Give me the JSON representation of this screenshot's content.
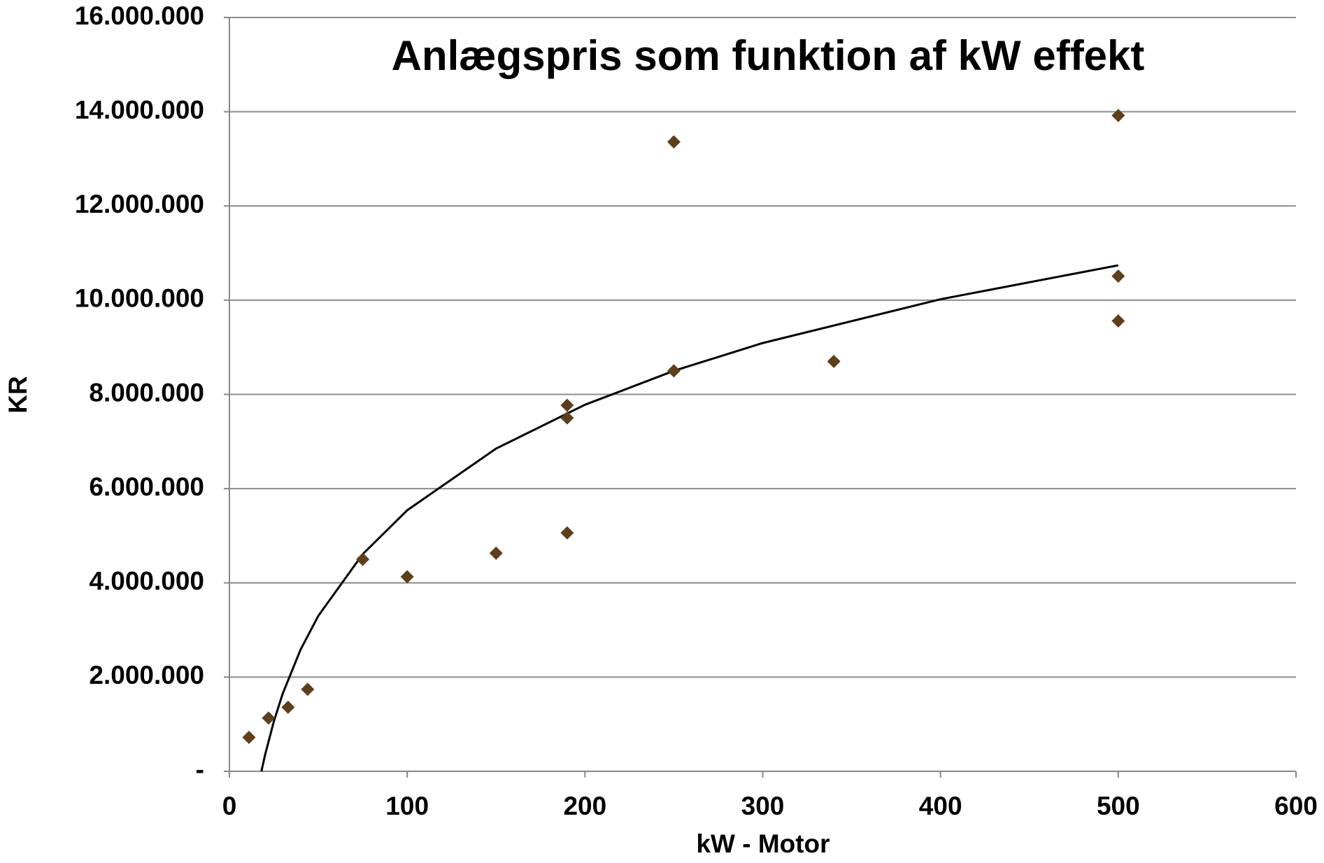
{
  "chart_data": {
    "type": "scatter",
    "title": "Anlægspris som funktion af kW effekt",
    "x_label": "kW - Motor",
    "y_label": "KR",
    "x": [
      11,
      22,
      33,
      44,
      75,
      100,
      150,
      190,
      190,
      190,
      250,
      250,
      340,
      500,
      500,
      500
    ],
    "values": [
      720000,
      1130000,
      1360000,
      1740000,
      4500000,
      4130000,
      4630000,
      5060000,
      7500000,
      7770000,
      13360000,
      8500000,
      8700000,
      13920000,
      10510000,
      9560000
    ],
    "color": "#5e3f1c",
    "trendline": {
      "type": "logarithmic",
      "color": "#000000",
      "x": [
        18,
        20,
        25,
        30,
        40,
        50,
        75,
        100,
        150,
        200,
        250,
        300,
        400,
        500
      ],
      "values": [
        0,
        340000,
        1060000,
        1650000,
        2580000,
        3300000,
        4610000,
        5540000,
        6850000,
        7780000,
        8500000,
        9090000,
        10020000,
        10740000
      ]
    },
    "xlim": [
      0,
      600
    ],
    "xticks": [
      0,
      100,
      200,
      300,
      400,
      500,
      600
    ],
    "ylim": [
      0,
      16000000
    ],
    "yticks": [
      {
        "value": 0,
        "label": "-"
      },
      {
        "value": 2000000,
        "label": "2.000.000"
      },
      {
        "value": 4000000,
        "label": "4.000.000"
      },
      {
        "value": 6000000,
        "label": "6.000.000"
      },
      {
        "value": 8000000,
        "label": "8.000.000"
      },
      {
        "value": 10000000,
        "label": "10.000.000"
      },
      {
        "value": 12000000,
        "label": "12.000.000"
      },
      {
        "value": 14000000,
        "label": "14.000.000"
      },
      {
        "value": 16000000,
        "label": "16.000.000"
      }
    ],
    "grid": true
  }
}
